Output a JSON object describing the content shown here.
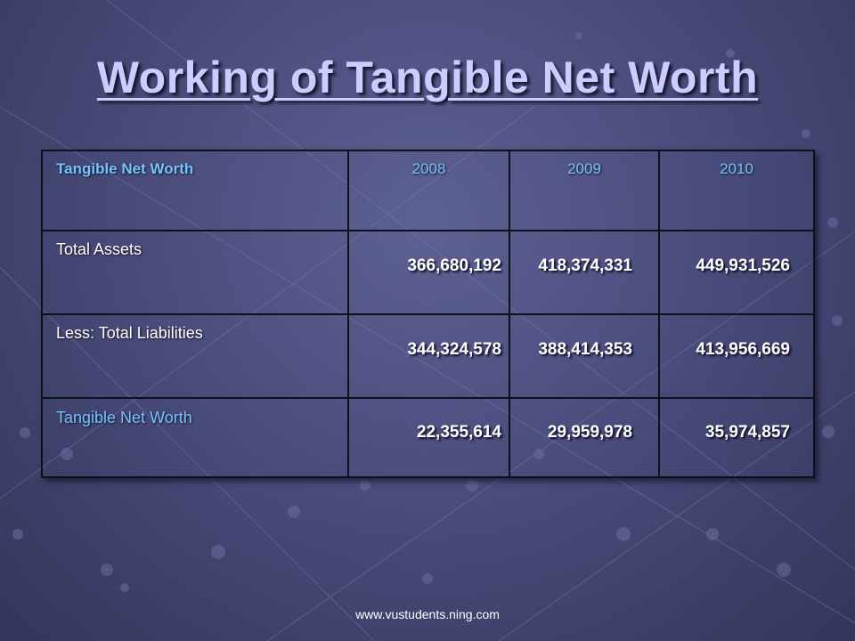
{
  "slide": {
    "title": "Working of Tangible Net Worth",
    "footer": "www.vustudents.ning.com"
  },
  "table": {
    "header": {
      "label": "Tangible Net Worth",
      "years": [
        "2008",
        "2009",
        "2010"
      ]
    },
    "rows": [
      {
        "label": "Total Assets",
        "values": [
          "366,680,192",
          "418,374,331",
          "449,931,526"
        ]
      },
      {
        "label": "Less: Total Liabilities",
        "values": [
          "344,324,578",
          "388,414,353",
          "413,956,669"
        ]
      },
      {
        "label": "Tangible Net Worth",
        "values": [
          "22,355,614",
          "29,959,978",
          "35,974,857"
        ]
      }
    ]
  },
  "colors": {
    "title": "#ccccff",
    "accent": "#73c4ff",
    "background": "#4a4d7c"
  }
}
